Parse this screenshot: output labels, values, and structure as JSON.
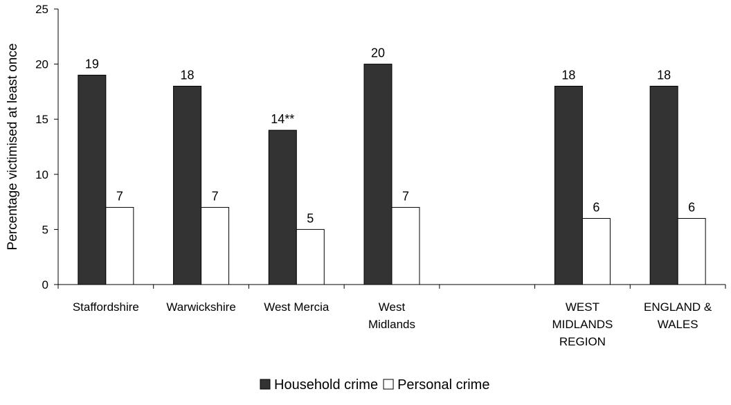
{
  "chart_data": {
    "type": "bar",
    "title": "",
    "xlabel": "",
    "ylabel": "Percentage victimised at least once",
    "ylim": [
      0,
      25
    ],
    "yticks": [
      0,
      5,
      10,
      15,
      20,
      25
    ],
    "grid": false,
    "legend_position": "bottom-center",
    "categories": [
      [
        "Staffordshire"
      ],
      [
        "Warwickshire"
      ],
      [
        "West Mercia"
      ],
      [
        "West",
        "Midlands"
      ],
      [
        ""
      ],
      [
        "WEST",
        "MIDLANDS",
        "REGION"
      ],
      [
        "ENGLAND &",
        "WALES"
      ]
    ],
    "series": [
      {
        "name": "Household crime",
        "color": "#333333",
        "values": [
          19,
          18,
          14,
          20,
          null,
          18,
          18
        ],
        "labels": [
          "19",
          "18",
          "14**",
          "20",
          "",
          "18",
          "18"
        ]
      },
      {
        "name": "Personal crime",
        "color": "#ffffff",
        "values": [
          7,
          7,
          5,
          7,
          null,
          6,
          6
        ],
        "labels": [
          "7",
          "7",
          "5",
          "7",
          "",
          "6",
          "6"
        ]
      }
    ]
  }
}
